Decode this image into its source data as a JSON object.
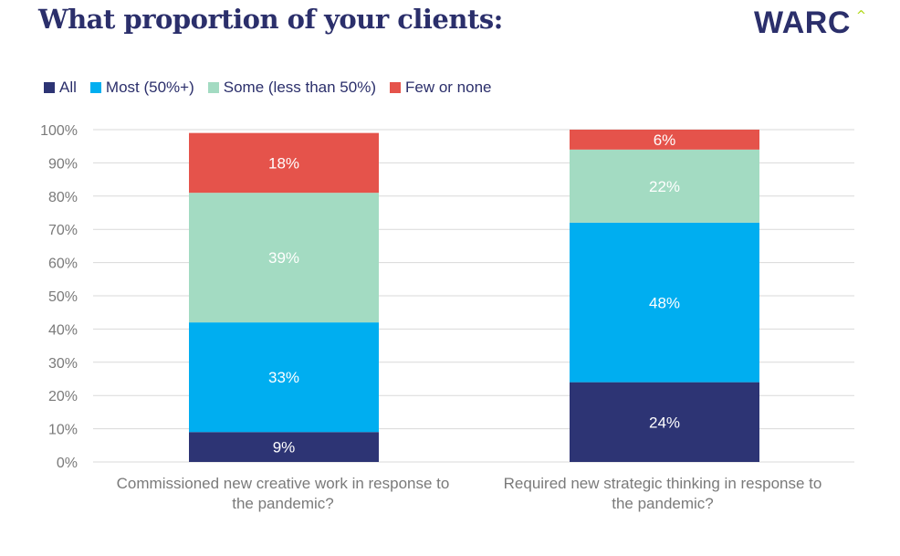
{
  "title": "What proportion of your clients:",
  "brand": {
    "logo_text": "WARC",
    "logo_caret": "^"
  },
  "colors": {
    "All": "#2d3474",
    "Most (50%+)": "#00aef0",
    "Some (less than 50%)": "#a3dbc2",
    "Few or none": "#e5534b",
    "grid": "#d9d9d9",
    "title": "#2b2f6b"
  },
  "legend": {
    "items": [
      {
        "label": "All",
        "color": "#2d3474"
      },
      {
        "label": "Most (50%+)",
        "color": "#00aef0"
      },
      {
        "label": "Some (less than 50%)",
        "color": "#a3dbc2"
      },
      {
        "label": "Few or none",
        "color": "#e5534b"
      }
    ]
  },
  "chart_data": {
    "type": "bar",
    "stacked": true,
    "categories": [
      "Commissioned new creative work in response to the pandemic?",
      "Required new strategic thinking in response to the pandemic?"
    ],
    "category_lines": [
      [
        "Commissioned new creative work in response to",
        "the pandemic?"
      ],
      [
        "Required new strategic thinking in response to",
        "the pandemic?"
      ]
    ],
    "series": [
      {
        "name": "All",
        "values": [
          9,
          24
        ],
        "labels": [
          "9%",
          "24%"
        ]
      },
      {
        "name": "Most (50%+)",
        "values": [
          33,
          48
        ],
        "labels": [
          "33%",
          "48%"
        ]
      },
      {
        "name": "Some (less than 50%)",
        "values": [
          39,
          22
        ],
        "labels": [
          "39%",
          "22%"
        ]
      },
      {
        "name": "Few or none",
        "values": [
          18,
          6
        ],
        "labels": [
          "18%",
          "6%"
        ]
      }
    ],
    "ylim": [
      0,
      100
    ],
    "yticks": [
      0,
      10,
      20,
      30,
      40,
      50,
      60,
      70,
      80,
      90,
      100
    ],
    "ytick_labels": [
      "0%",
      "10%",
      "20%",
      "30%",
      "40%",
      "50%",
      "60%",
      "70%",
      "80%",
      "90%",
      "100%"
    ],
    "grid": true,
    "legend_position": "top-left",
    "xlabel": "",
    "ylabel": ""
  }
}
